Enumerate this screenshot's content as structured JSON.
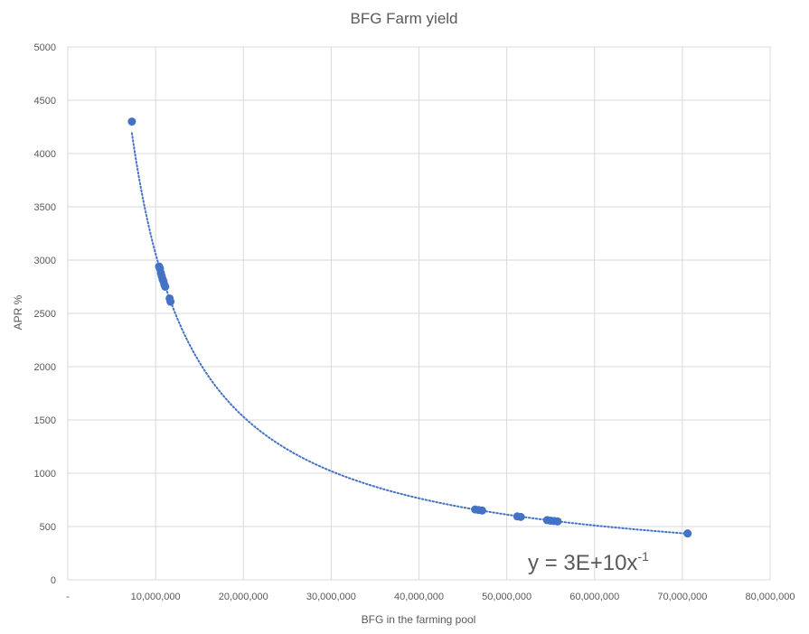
{
  "chart_data": {
    "type": "scatter",
    "title": "BFG Farm yield",
    "xlabel": "BFG in the farming pool",
    "ylabel": "APR %",
    "xlim": [
      0,
      80000000
    ],
    "ylim": [
      0,
      5000
    ],
    "x_tick_labels": [
      "-",
      "10,000,000",
      "20,000,000",
      "30,000,000",
      "40,000,000",
      "50,000,000",
      "60,000,000",
      "70,000,000",
      "80,000,000"
    ],
    "y_tick_labels": [
      "0",
      "500",
      "1000",
      "1500",
      "2000",
      "2500",
      "3000",
      "3500",
      "4000",
      "4500",
      "5000"
    ],
    "grid": true,
    "marker_color": "#4472C4",
    "trendline": {
      "type": "power",
      "equation_base": "y = 3E+10x",
      "equation_exponent": "-1",
      "style": "dotted",
      "color": "#4472C4",
      "x_range": [
        7300000,
        70600000
      ]
    },
    "series": [
      {
        "points": [
          [
            7300000,
            4300
          ],
          [
            10400000,
            2940
          ],
          [
            10500000,
            2920
          ],
          [
            10600000,
            2880
          ],
          [
            10700000,
            2850
          ],
          [
            10800000,
            2820
          ],
          [
            10900000,
            2800
          ],
          [
            11000000,
            2770
          ],
          [
            11100000,
            2750
          ],
          [
            11600000,
            2640
          ],
          [
            11700000,
            2610
          ],
          [
            46400000,
            660
          ],
          [
            46800000,
            655
          ],
          [
            47200000,
            650
          ],
          [
            51200000,
            595
          ],
          [
            51600000,
            590
          ],
          [
            54600000,
            560
          ],
          [
            55000000,
            555
          ],
          [
            55400000,
            552
          ],
          [
            55800000,
            548
          ],
          [
            70600000,
            435
          ]
        ]
      }
    ]
  }
}
